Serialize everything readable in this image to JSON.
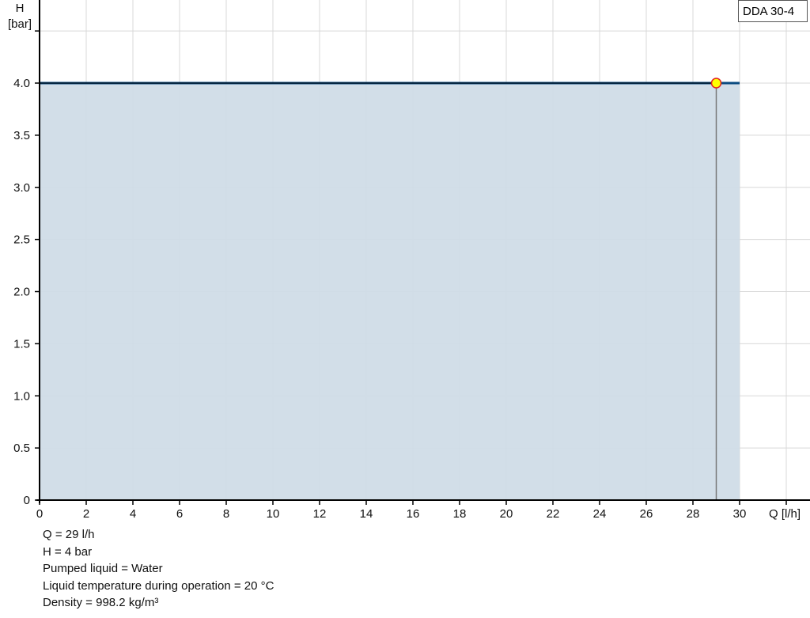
{
  "chart_data": {
    "type": "area",
    "legend": "DDA 30-4",
    "legend_position": "top-right",
    "xlabel": "Q [l/h]",
    "ylabel_top": "H",
    "ylabel_unit": "[bar]",
    "xlim": [
      0,
      33
    ],
    "ylim": [
      0,
      4.8
    ],
    "grid": true,
    "x_ticks": [
      0,
      2,
      4,
      6,
      8,
      10,
      12,
      14,
      16,
      18,
      20,
      22,
      24,
      26,
      28,
      30,
      32
    ],
    "x_tick_labels": [
      "0",
      "2",
      "4",
      "6",
      "8",
      "10",
      "12",
      "14",
      "16",
      "18",
      "20",
      "22",
      "24",
      "26",
      "28",
      "30"
    ],
    "y_ticks": [
      0,
      0.5,
      1.0,
      1.5,
      2.0,
      2.5,
      3.0,
      3.5,
      4.0,
      4.5
    ],
    "y_tick_labels": [
      "0",
      "0.5",
      "1.0",
      "1.5",
      "2.0",
      "2.5",
      "3.0",
      "3.5",
      "4.0"
    ],
    "series": [
      {
        "x": [
          0,
          30
        ],
        "y": [
          4,
          4
        ]
      }
    ],
    "operating_point": {
      "x": 29,
      "y": 4
    },
    "colors": {
      "line": "#0a4a80",
      "fill": "#d0dce7",
      "point_fill": "#ffff00",
      "point_stroke": "#e02020",
      "grid": "#d8d8d8"
    }
  },
  "info": [
    "Q = 29 l/h",
    "H = 4 bar",
    "Pumped liquid = Water",
    "Liquid temperature during operation = 20 °C",
    "Density = 998.2 kg/m³"
  ]
}
